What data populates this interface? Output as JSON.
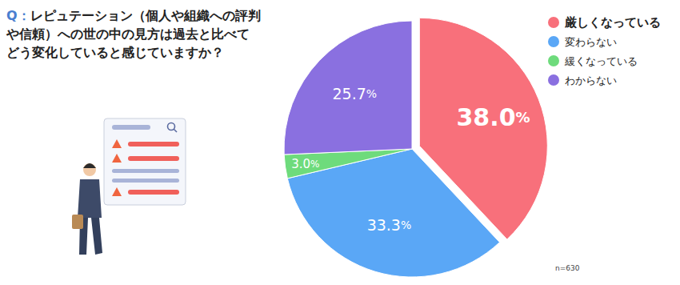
{
  "chart_data": {
    "type": "pie",
    "title": "Q：レピュテーション（個人や組織への評判\nや信頼）への世の中の見方は過去と比べて\nどう変化していると感じていますか？",
    "categories": [
      "厳しくなっている",
      "変わらない",
      "緩くなっている",
      "わからない"
    ],
    "values": [
      38.0,
      33.3,
      3.0,
      25.7
    ],
    "value_labels": [
      "38.0%",
      "33.3%",
      "3.0%",
      "25.7%"
    ],
    "colors": [
      "#f8707b",
      "#5aa7f6",
      "#6edb7c",
      "#8a70e0"
    ],
    "data_labels": true,
    "legend": "top-right",
    "annotations": [
      "n=630"
    ]
  }
}
